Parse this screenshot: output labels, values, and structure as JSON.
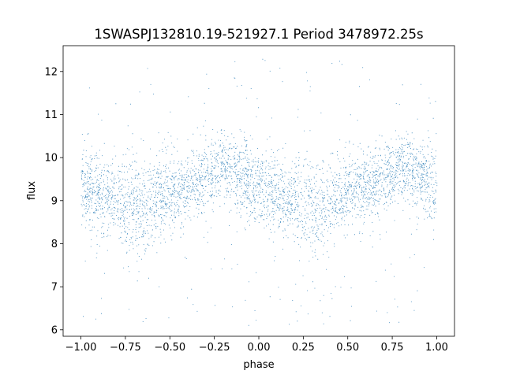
{
  "chart_data": {
    "type": "scatter",
    "title": "1SWASPJ132810.19-521927.1 Period 3478972.25s",
    "xlabel": "phase",
    "ylabel": "flux",
    "xlim": [
      -1.1,
      1.1
    ],
    "ylim": [
      5.85,
      12.6
    ],
    "x_ticks": [
      -1.0,
      -0.75,
      -0.5,
      -0.25,
      0.0,
      0.25,
      0.5,
      0.75,
      1.0
    ],
    "x_tick_labels": [
      "−1.00",
      "−0.75",
      "−0.50",
      "−0.25",
      "0.00",
      "0.25",
      "0.50",
      "0.75",
      "1.00"
    ],
    "y_ticks": [
      6,
      7,
      8,
      9,
      10,
      11,
      12
    ],
    "y_tick_labels": [
      "6",
      "7",
      "8",
      "9",
      "10",
      "11",
      "12"
    ],
    "grid": false,
    "legend": "none",
    "series_color": "#1f77b4",
    "folded_light_curve_profile": {
      "phase": [
        -1.0,
        -0.9,
        -0.8,
        -0.75,
        -0.7,
        -0.65,
        -0.6,
        -0.5,
        -0.4,
        -0.3,
        -0.2,
        -0.1,
        0.0,
        0.1,
        0.2,
        0.25,
        0.3,
        0.35,
        0.4,
        0.5,
        0.6,
        0.7,
        0.8,
        0.9,
        1.0
      ],
      "median_flux": [
        9.3,
        9.2,
        9.1,
        8.9,
        8.9,
        8.8,
        9.0,
        9.1,
        9.3,
        9.5,
        9.8,
        9.6,
        9.3,
        9.1,
        9.0,
        8.9,
        8.9,
        8.9,
        9.0,
        9.2,
        9.3,
        9.5,
        9.8,
        9.6,
        9.3
      ],
      "spread": [
        0.6,
        0.6,
        0.65,
        0.7,
        0.7,
        0.7,
        0.65,
        0.6,
        0.55,
        0.55,
        0.5,
        0.55,
        0.6,
        0.6,
        0.65,
        0.7,
        0.7,
        0.7,
        0.65,
        0.6,
        0.55,
        0.55,
        0.5,
        0.55,
        0.6
      ]
    },
    "flux_range": [
      6.1,
      12.3
    ]
  }
}
